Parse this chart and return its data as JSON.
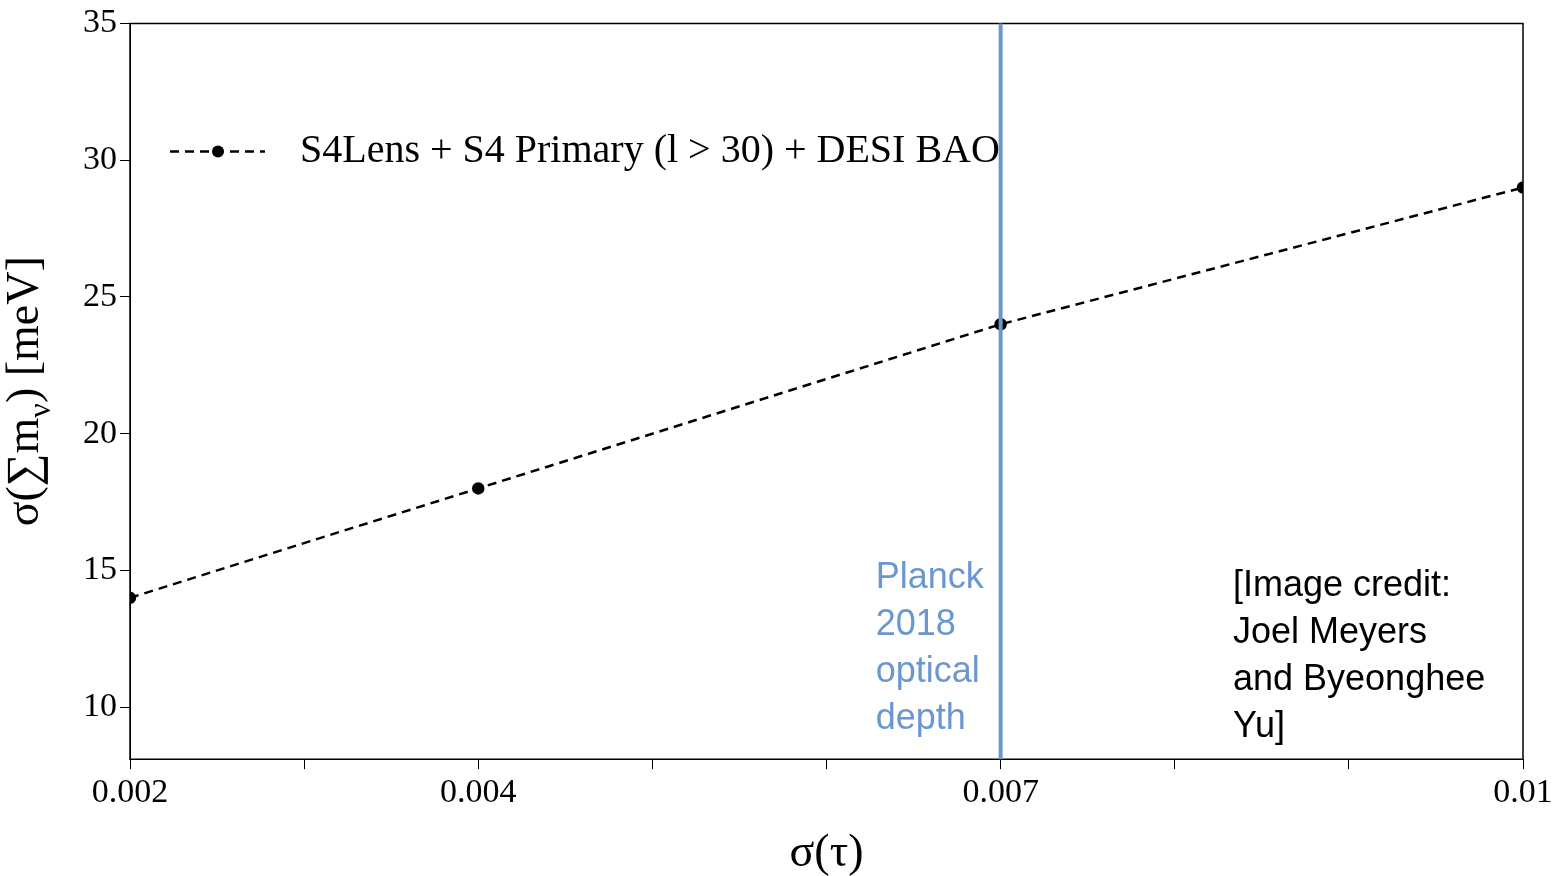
{
  "chart_data": {
    "type": "line",
    "xlabel": "σ(τ)",
    "ylabel": "σ(∑m$_{ν}$) [meV]",
    "x": [
      0.002,
      0.004,
      0.007,
      0.01
    ],
    "series": [
      {
        "name": "S4Lens + S4 Primary (l > 30) + DESI BAO",
        "color": "#000000",
        "values": [
          14,
          18,
          24,
          29
        ]
      }
    ],
    "xlim": [
      0.002,
      0.01
    ],
    "xticks": [
      0.002,
      {
        "value": 0.003,
        "label": null
      },
      0.004,
      {
        "value": 0.005,
        "label": null
      },
      {
        "value": 0.006,
        "label": null
      },
      0.007,
      {
        "value": 0.008,
        "label": null
      },
      {
        "value": 0.009,
        "label": null
      },
      0.01
    ],
    "ylim": [
      8.1,
      35
    ],
    "yticks": [
      10,
      15,
      20,
      25,
      30,
      35
    ],
    "ref_lines": [
      {
        "axis": "x",
        "value": 0.007,
        "label": "Planck 2018 optical depth",
        "color": "#6a97cf"
      }
    ],
    "annotations": [
      "[Image credit: Joel Meyers and Byeonghee Yu]"
    ],
    "legend": "top left",
    "marker": "circle",
    "line_style": "dashed",
    "grid": false
  }
}
